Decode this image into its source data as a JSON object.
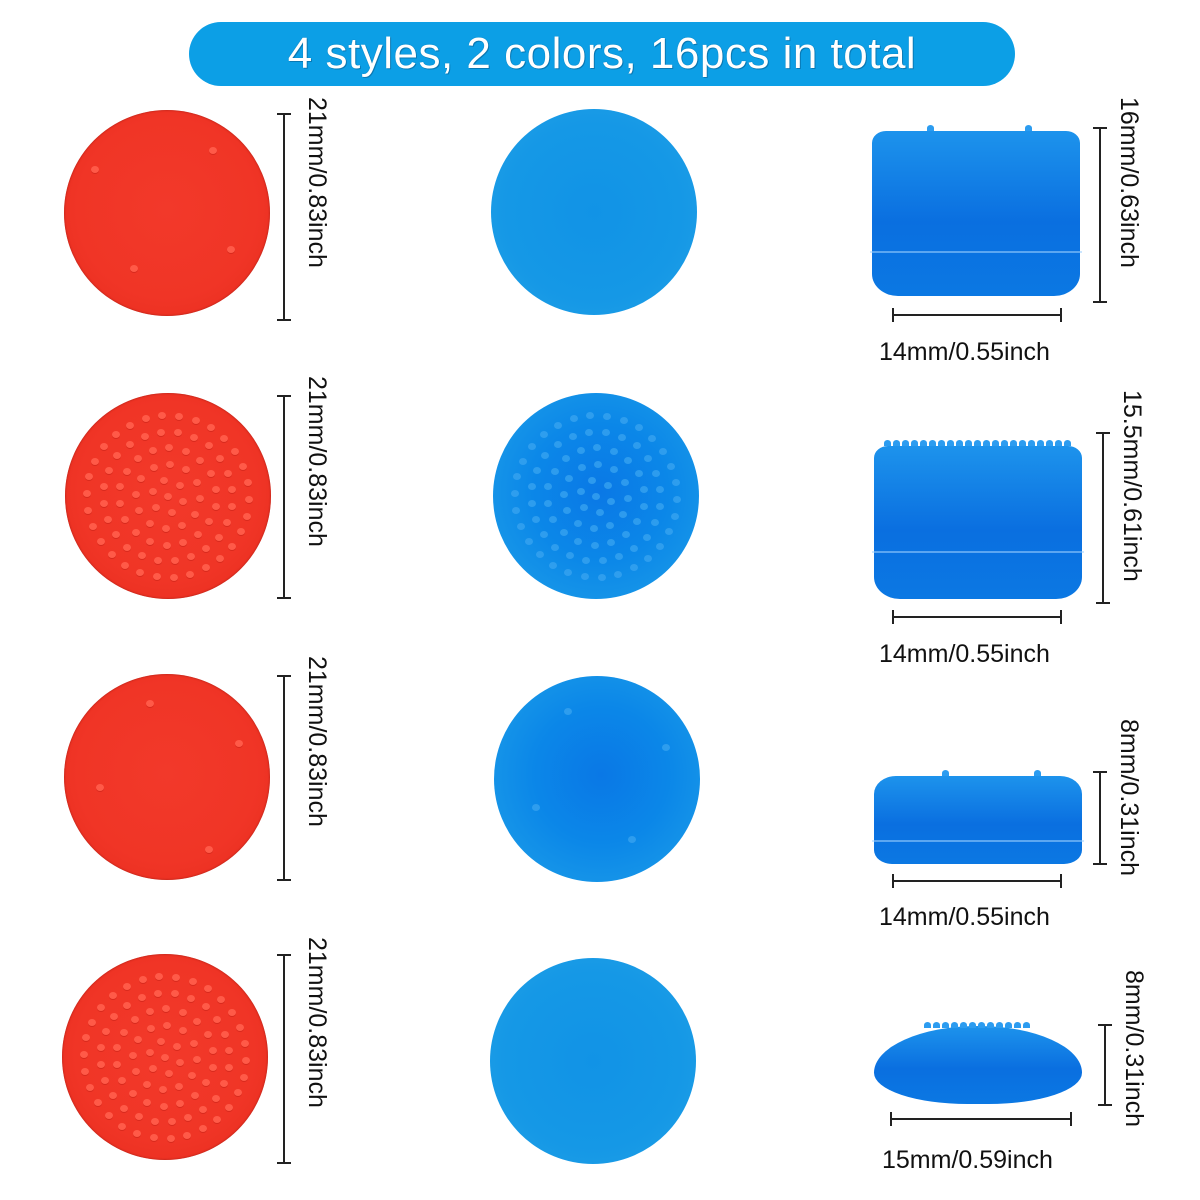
{
  "banner": {
    "text": "4 styles, 2 colors, 16pcs in total",
    "color": "#0c9fe6"
  },
  "colors": {
    "red": "#f03526",
    "blue": "#0b87e8"
  },
  "rows": [
    {
      "style": "smooth-with-4-dots",
      "top_diameter_label": "21mm/0.83inch",
      "side_height_label": "16mm/0.63inch",
      "side_width_label": "14mm/0.55inch"
    },
    {
      "style": "studded-tall",
      "top_diameter_label": "21mm/0.83inch",
      "side_height_label": "15.5mm/0.61inch",
      "side_width_label": "14mm/0.55inch"
    },
    {
      "style": "smooth-low",
      "top_diameter_label": "21mm/0.83inch",
      "side_height_label": "8mm/0.31inch",
      "side_width_label": "14mm/0.55inch"
    },
    {
      "style": "studded-dome",
      "top_diameter_label": "21mm/0.83inch",
      "side_height_label": "8mm/0.31inch",
      "side_width_label": "15mm/0.59inch"
    }
  ]
}
